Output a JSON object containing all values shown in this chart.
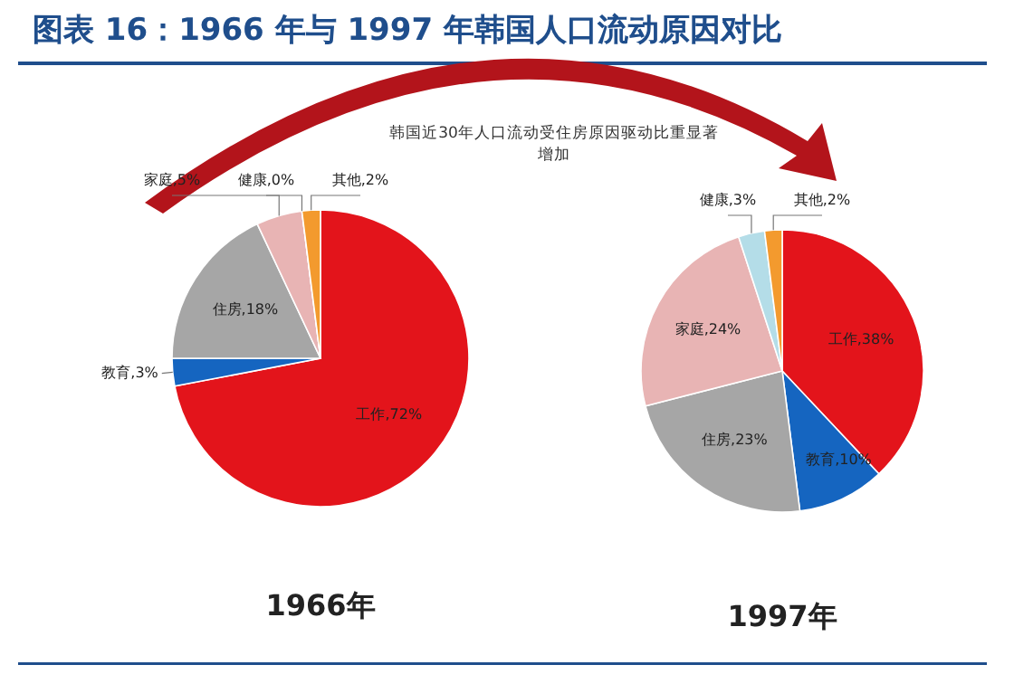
{
  "chart_data": [
    {
      "type": "pie",
      "title": "1966年",
      "categories": [
        "工作",
        "教育",
        "住房",
        "家庭",
        "健康",
        "其他"
      ],
      "values": [
        72,
        3,
        18,
        5,
        0,
        2
      ],
      "colors": [
        "#e3141b",
        "#1565c0",
        "#a6a6a6",
        "#e8b4b4",
        "#b4dde8",
        "#f39a2e"
      ],
      "value_labels": [
        ",72%",
        ",3%",
        ",18%",
        ",5%",
        ",0%",
        ",2%"
      ],
      "annotations": [
        "图表 16：1966 年与 1997 年韩国人口流动原因对比",
        "韩国近30年人口流动受住房原因驱动比重显著增加"
      ]
    },
    {
      "type": "pie",
      "title": "1997年",
      "categories": [
        "工作",
        "教育",
        "住房",
        "家庭",
        "健康",
        "其他"
      ],
      "values": [
        38,
        10,
        23,
        24,
        3,
        2
      ],
      "colors": [
        "#e3141b",
        "#1565c0",
        "#a6a6a6",
        "#e8b4b4",
        "#b4dde8",
        "#f39a2e"
      ],
      "value_labels": [
        ",38%",
        ",10%",
        ",23%",
        ",24%",
        ",3%",
        ",2%"
      ]
    }
  ]
}
